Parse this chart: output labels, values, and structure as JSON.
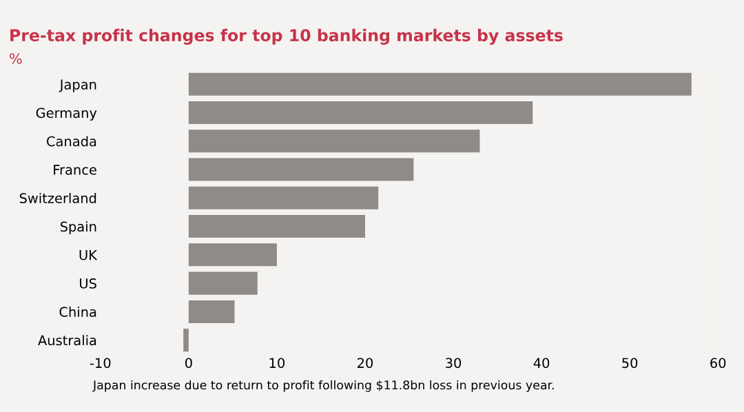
{
  "chart_data": {
    "type": "bar",
    "orientation": "horizontal",
    "title": "Pre-tax profit changes for top 10 banking markets by assets",
    "subtitle": "%",
    "categories": [
      "Japan",
      "Germany",
      "Canada",
      "France",
      "Switzerland",
      "Spain",
      "UK",
      "US",
      "China",
      "Australia"
    ],
    "values": [
      57,
      39,
      33,
      25.5,
      21.5,
      20,
      10,
      7.8,
      5.2,
      -0.6
    ],
    "color": "#8e8b88",
    "xlim": [
      -10,
      60
    ],
    "xticks": [
      -10,
      0,
      10,
      20,
      30,
      40,
      50,
      60
    ],
    "grid": false,
    "annotations": [
      "Japan increase due to return to profit following $11.8bn loss in previous year."
    ]
  }
}
